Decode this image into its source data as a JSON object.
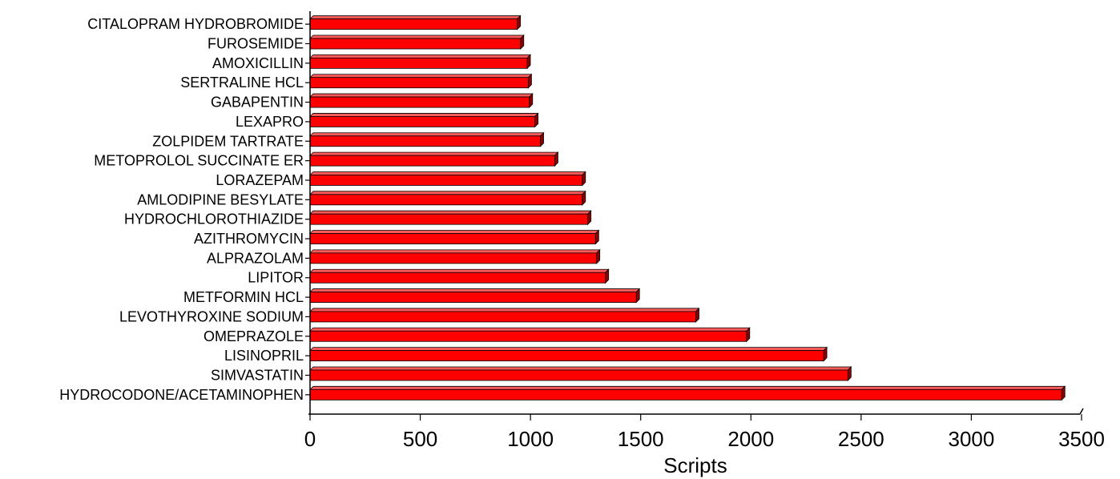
{
  "chart_data": {
    "type": "bar",
    "orientation": "horizontal",
    "style": "3d",
    "categories": [
      "HYDROCODONE/ACETAMINOPHEN",
      "SIMVASTATIN",
      "LISINOPRIL",
      "OMEPRAZOLE",
      "LEVOTHYROXINE SODIUM",
      "METFORMIN HCL",
      "LIPITOR",
      "ALPRAZOLAM",
      "AZITHROMYCIN",
      "HYDROCHLOROTHIAZIDE",
      "AMLODIPINE BESYLATE",
      "LORAZEPAM",
      "METOPROLOL SUCCINATE ER",
      "ZOLPIDEM TARTRATE",
      "LEXAPRO",
      "GABAPENTIN",
      "SERTRALINE HCL",
      "AMOXICILLIN",
      "FUROSEMIDE",
      "CITALOPRAM HYDROBROMIDE"
    ],
    "values": [
      3410,
      2440,
      2330,
      1980,
      1750,
      1480,
      1340,
      1300,
      1295,
      1260,
      1235,
      1235,
      1110,
      1045,
      1020,
      995,
      990,
      985,
      955,
      940
    ],
    "xlabel": "Scripts",
    "ylabel": "",
    "xlim": [
      0,
      3500
    ],
    "xticks": [
      "0",
      "500",
      "1000",
      "1500",
      "2000",
      "2500",
      "3000",
      "3500"
    ],
    "grid": false,
    "legend": "none",
    "colors": {
      "bar_face": "#ff0000",
      "bar_top": "#ff5a5a",
      "bar_side": "#8c0000",
      "axis": "#000000"
    }
  }
}
